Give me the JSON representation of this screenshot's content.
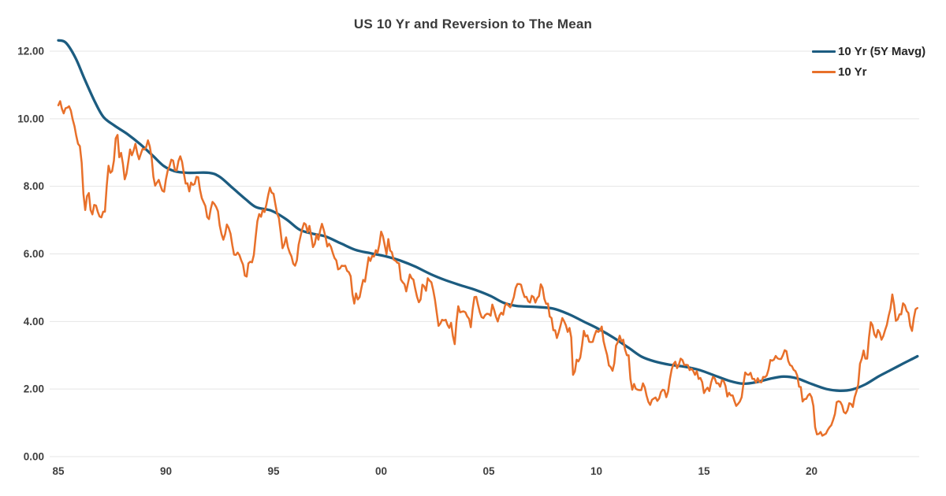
{
  "chart_data": {
    "type": "line",
    "title": "US 10 Yr and Reversion to The Mean",
    "grid": "horizontal-only",
    "legend_position": "top-right",
    "background_color": "#ffffff",
    "gridline_color": "#e5e5e5",
    "axis_label_color": "#3f3f3f",
    "x_axis": {
      "range_years": [
        1985,
        2025.0
      ],
      "ticks": [
        {
          "label": "85",
          "year": 1985
        },
        {
          "label": "90",
          "year": 1990
        },
        {
          "label": "95",
          "year": 1995
        },
        {
          "label": "00",
          "year": 2000
        },
        {
          "label": "05",
          "year": 2005
        },
        {
          "label": "10",
          "year": 2010
        },
        {
          "label": "15",
          "year": 2015
        },
        {
          "label": "20",
          "year": 2020
        }
      ]
    },
    "y_axis": {
      "range": [
        0,
        12.8
      ],
      "ticks": [
        {
          "label": "0.00",
          "value": 0
        },
        {
          "label": "2.00",
          "value": 2
        },
        {
          "label": "4.00",
          "value": 4
        },
        {
          "label": "6.00",
          "value": 6
        },
        {
          "label": "8.00",
          "value": 8
        },
        {
          "label": "10.00",
          "value": 10
        },
        {
          "label": "12.00",
          "value": 12
        }
      ]
    },
    "series": [
      {
        "name": "10 Yr (5Y Mavg)",
        "color": "#1c5c80",
        "line_width": 3.3,
        "style": "smooth",
        "points": [
          [
            1985.0,
            12.32
          ],
          [
            1985.35,
            12.25
          ],
          [
            1985.8,
            11.8
          ],
          [
            1986.2,
            11.2
          ],
          [
            1986.7,
            10.5
          ],
          [
            1987.1,
            10.05
          ],
          [
            1987.6,
            9.8
          ],
          [
            1988.2,
            9.55
          ],
          [
            1988.8,
            9.25
          ],
          [
            1989.4,
            8.9
          ],
          [
            1989.9,
            8.6
          ],
          [
            1990.4,
            8.45
          ],
          [
            1991.0,
            8.4
          ],
          [
            1992.0,
            8.4
          ],
          [
            1992.5,
            8.28
          ],
          [
            1993.1,
            7.95
          ],
          [
            1993.7,
            7.62
          ],
          [
            1994.2,
            7.38
          ],
          [
            1994.9,
            7.28
          ],
          [
            1995.6,
            7.02
          ],
          [
            1996.2,
            6.72
          ],
          [
            1996.8,
            6.6
          ],
          [
            1997.4,
            6.52
          ],
          [
            1998.1,
            6.32
          ],
          [
            1998.8,
            6.12
          ],
          [
            1999.5,
            6.02
          ],
          [
            2000.2,
            5.93
          ],
          [
            2000.9,
            5.8
          ],
          [
            2001.6,
            5.62
          ],
          [
            2002.3,
            5.4
          ],
          [
            2003.0,
            5.22
          ],
          [
            2003.7,
            5.07
          ],
          [
            2004.4,
            4.93
          ],
          [
            2005.1,
            4.75
          ],
          [
            2005.7,
            4.55
          ],
          [
            2006.3,
            4.46
          ],
          [
            2007.2,
            4.43
          ],
          [
            2008.0,
            4.38
          ],
          [
            2008.7,
            4.22
          ],
          [
            2009.4,
            4.0
          ],
          [
            2010.1,
            3.78
          ],
          [
            2010.8,
            3.52
          ],
          [
            2011.5,
            3.22
          ],
          [
            2012.1,
            2.96
          ],
          [
            2012.7,
            2.82
          ],
          [
            2013.4,
            2.72
          ],
          [
            2014.1,
            2.66
          ],
          [
            2014.8,
            2.56
          ],
          [
            2015.5,
            2.4
          ],
          [
            2016.2,
            2.24
          ],
          [
            2016.8,
            2.16
          ],
          [
            2017.4,
            2.2
          ],
          [
            2018.1,
            2.31
          ],
          [
            2018.7,
            2.37
          ],
          [
            2019.3,
            2.32
          ],
          [
            2020.0,
            2.15
          ],
          [
            2020.7,
            2.0
          ],
          [
            2021.3,
            1.95
          ],
          [
            2021.9,
            1.99
          ],
          [
            2022.5,
            2.14
          ],
          [
            2023.1,
            2.37
          ],
          [
            2023.7,
            2.57
          ],
          [
            2024.3,
            2.77
          ],
          [
            2024.92,
            2.97
          ]
        ]
      },
      {
        "name": "10 Yr",
        "color": "#e8702a",
        "line_width": 2.5,
        "style": "jagged",
        "start_year": 1985.0,
        "step_years": 0.083333,
        "values": [
          10.4,
          10.52,
          10.3,
          10.16,
          10.31,
          10.33,
          10.37,
          10.24,
          9.98,
          9.78,
          9.5,
          9.26,
          9.19,
          8.7,
          7.78,
          7.3,
          7.71,
          7.8,
          7.3,
          7.17,
          7.45,
          7.43,
          7.25,
          7.11,
          7.08,
          7.25,
          7.25,
          8.02,
          8.61,
          8.4,
          8.45,
          8.76,
          9.42,
          9.52,
          8.86,
          8.99,
          8.67,
          8.21,
          8.37,
          8.72,
          9.09,
          8.92,
          9.06,
          9.26,
          8.98,
          8.8,
          8.96,
          9.11,
          9.09,
          9.17,
          9.36,
          9.18,
          8.86,
          8.28,
          8.02,
          8.11,
          8.19,
          8.01,
          7.87,
          7.84,
          8.21,
          8.47,
          8.59,
          8.79,
          8.76,
          8.48,
          8.47,
          8.75,
          8.89,
          8.72,
          8.39,
          8.08,
          8.09,
          7.85,
          8.11,
          8.04,
          8.07,
          8.28,
          8.27,
          7.9,
          7.65,
          7.53,
          7.42,
          7.09,
          7.03,
          7.34,
          7.54,
          7.48,
          7.39,
          7.26,
          6.84,
          6.59,
          6.42,
          6.59,
          6.87,
          6.77,
          6.6,
          6.26,
          5.98,
          5.97,
          6.04,
          5.96,
          5.81,
          5.68,
          5.36,
          5.33,
          5.72,
          5.77,
          5.75,
          5.97,
          6.48,
          6.97,
          7.18,
          7.1,
          7.3,
          7.24,
          7.46,
          7.74,
          7.96,
          7.81,
          7.78,
          7.47,
          7.2,
          7.06,
          6.63,
          6.17,
          6.28,
          6.49,
          6.2,
          6.04,
          5.93,
          5.71,
          5.65,
          5.81,
          6.27,
          6.51,
          6.74,
          6.91,
          6.87,
          6.64,
          6.83,
          6.53,
          6.2,
          6.3,
          6.58,
          6.42,
          6.69,
          6.89,
          6.71,
          6.49,
          6.22,
          6.3,
          6.21,
          6.03,
          5.88,
          5.81,
          5.54,
          5.57,
          5.65,
          5.64,
          5.65,
          5.5,
          5.46,
          5.34,
          4.81,
          4.53,
          4.83,
          4.65,
          4.72,
          5.0,
          5.23,
          5.18,
          5.54,
          5.9,
          5.79,
          5.94,
          5.92,
          6.11,
          6.03,
          6.28,
          6.66,
          6.52,
          6.26,
          5.99,
          6.44,
          6.1,
          6.05,
          5.83,
          5.8,
          5.74,
          5.72,
          5.24,
          5.16,
          5.1,
          4.89,
          5.14,
          5.39,
          5.28,
          5.24,
          4.97,
          4.73,
          4.57,
          4.65,
          5.09,
          5.04,
          4.91,
          5.28,
          5.21,
          5.16,
          4.93,
          4.65,
          4.26,
          3.87,
          3.94,
          4.05,
          4.03,
          4.05,
          3.9,
          3.81,
          3.96,
          3.57,
          3.33,
          3.98,
          4.45,
          4.27,
          4.29,
          4.3,
          4.27,
          4.15,
          4.08,
          3.83,
          4.35,
          4.72,
          4.73,
          4.5,
          4.28,
          4.13,
          4.1,
          4.19,
          4.23,
          4.22,
          4.17,
          4.5,
          4.34,
          4.14,
          4.0,
          4.18,
          4.26,
          4.2,
          4.46,
          4.54,
          4.47,
          4.42,
          4.57,
          4.72,
          4.99,
          5.11,
          5.11,
          5.09,
          4.88,
          4.72,
          4.73,
          4.6,
          4.56,
          4.76,
          4.72,
          4.56,
          4.69,
          4.75,
          5.1,
          5.0,
          4.67,
          4.52,
          4.53,
          4.15,
          4.1,
          3.74,
          3.74,
          3.51,
          3.68,
          3.88,
          4.1,
          4.01,
          3.89,
          3.69,
          3.81,
          3.53,
          2.42,
          2.52,
          2.87,
          2.82,
          2.93,
          3.29,
          3.72,
          3.56,
          3.59,
          3.4,
          3.39,
          3.4,
          3.59,
          3.73,
          3.69,
          3.73,
          3.85,
          3.42,
          3.2,
          3.01,
          2.7,
          2.65,
          2.54,
          2.76,
          3.29,
          3.39,
          3.58,
          3.41,
          3.46,
          3.17,
          3.0,
          3.0,
          2.3,
          1.98,
          2.15,
          2.01,
          1.98,
          1.97,
          1.97,
          2.17,
          2.05,
          1.8,
          1.62,
          1.53,
          1.68,
          1.72,
          1.75,
          1.65,
          1.72,
          1.91,
          1.98,
          1.96,
          1.76,
          1.93,
          2.3,
          2.58,
          2.74,
          2.81,
          2.62,
          2.72,
          2.9,
          2.86,
          2.71,
          2.72,
          2.71,
          2.56,
          2.6,
          2.54,
          2.42,
          2.53,
          2.3,
          2.33,
          2.21,
          1.88,
          1.98,
          2.04,
          1.94,
          2.2,
          2.36,
          2.32,
          2.17,
          2.17,
          2.07,
          2.26,
          2.24,
          2.09,
          1.78,
          1.89,
          1.81,
          1.81,
          1.64,
          1.5,
          1.56,
          1.63,
          1.76,
          2.14,
          2.49,
          2.43,
          2.42,
          2.48,
          2.3,
          2.3,
          2.19,
          2.32,
          2.21,
          2.2,
          2.36,
          2.35,
          2.4,
          2.58,
          2.86,
          2.84,
          2.87,
          2.98,
          2.91,
          2.89,
          2.89,
          3.0,
          3.15,
          3.12,
          2.83,
          2.71,
          2.68,
          2.57,
          2.53,
          2.4,
          2.07,
          2.06,
          1.63,
          1.7,
          1.71,
          1.81,
          1.86,
          1.76,
          1.5,
          0.87,
          0.66,
          0.67,
          0.73,
          0.62,
          0.65,
          0.68,
          0.79,
          0.87,
          0.93,
          1.08,
          1.26,
          1.61,
          1.64,
          1.62,
          1.52,
          1.32,
          1.28,
          1.37,
          1.58,
          1.56,
          1.47,
          1.76,
          1.93,
          2.13,
          2.75,
          2.9,
          3.14,
          2.9,
          2.9,
          3.52,
          3.98,
          3.89,
          3.62,
          3.53,
          3.75,
          3.66,
          3.46,
          3.57,
          3.75,
          3.9,
          4.17,
          4.38,
          4.8,
          4.5,
          4.02,
          4.06,
          4.21,
          4.21,
          4.54,
          4.48,
          4.31,
          4.25,
          3.87,
          3.72,
          4.1,
          4.36,
          4.4
        ]
      }
    ]
  }
}
